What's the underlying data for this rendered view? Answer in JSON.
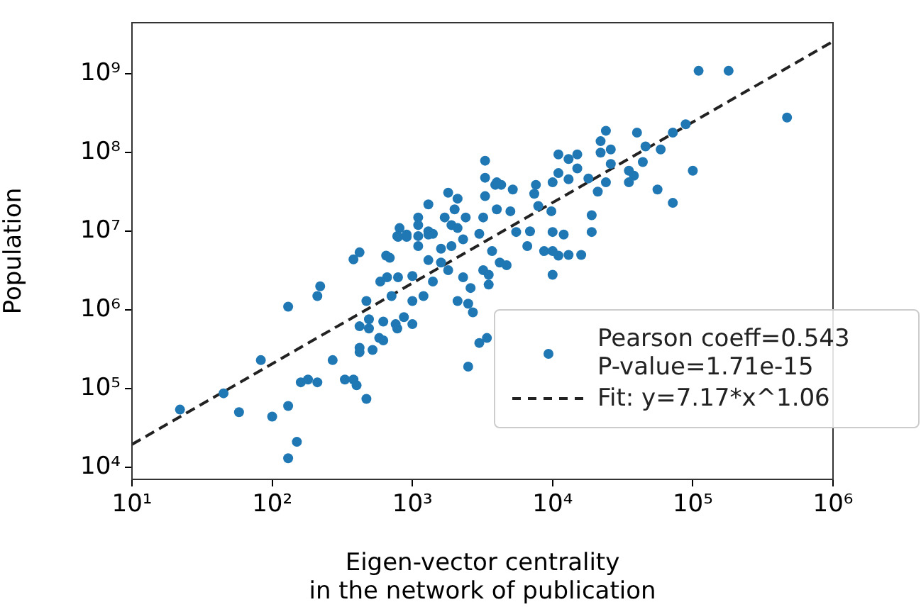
{
  "chart_data": {
    "type": "scatter",
    "xlabel": "Eigen-vector centrality\nin the network of publication",
    "ylabel": "Population",
    "log": "xy",
    "grid": false,
    "legend": "bottom right",
    "marker": "circle",
    "xlim": [
      10,
      1000000
    ],
    "ylim": [
      7000,
      4500000000
    ],
    "xticks": [
      {
        "value": 10,
        "label": "10¹"
      },
      {
        "value": 100,
        "label": "10²"
      },
      {
        "value": 1000,
        "label": "10³"
      },
      {
        "value": 10000,
        "label": "10⁴"
      },
      {
        "value": 100000,
        "label": "10⁵"
      },
      {
        "value": 1000000,
        "label": "10⁶"
      }
    ],
    "yticks": [
      {
        "value": 10000,
        "label": "10⁴"
      },
      {
        "value": 100000,
        "label": "10⁵"
      },
      {
        "value": 1000000,
        "label": "10⁶"
      },
      {
        "value": 10000000,
        "label": "10⁷"
      },
      {
        "value": 100000000,
        "label": "10⁸"
      },
      {
        "value": 1000000000,
        "label": "10⁹"
      }
    ],
    "series": [
      {
        "name": "Pearson coeff=0.543\nP-value=1.71e-15",
        "color": "#1f77b4",
        "x": [
          22,
          45,
          58,
          83,
          100,
          130,
          130,
          150,
          130,
          160,
          180,
          210,
          210,
          220,
          270,
          330,
          380,
          400,
          470,
          380,
          420,
          420,
          420,
          520,
          420,
          490,
          490,
          470,
          580,
          620,
          620,
          760,
          780,
          870,
          1000,
          590,
          660,
          790,
          650,
          690,
          710,
          1000,
          1000,
          1200,
          790,
          910,
          1100,
          1300,
          1300,
          1600,
          1600,
          1900,
          2300,
          2100,
          2500,
          2700,
          3000,
          2500,
          2300,
          1800,
          1400,
          2600,
          3200,
          3500,
          3300,
          3300,
          1800,
          2100,
          2000,
          1300,
          1100,
          1100,
          1700,
          2400,
          1900,
          2100,
          810,
          780,
          910,
          1100,
          1300,
          1400,
          3000,
          3200,
          3300,
          3900,
          110000.0,
          180000.0,
          470000.0,
          100000.0,
          72000.0,
          56000.0,
          89000.0,
          72000.0,
          59000.0,
          46000.0,
          40000.0,
          44000.0,
          35000.0,
          38000.0,
          35000.0,
          24000.0,
          22000.0,
          22000.0,
          26000.0,
          26000.0,
          24000.0,
          21000.0,
          18000.0,
          19000.0,
          19000.0,
          15000.0,
          13000.0,
          15000.0,
          11000.0,
          13000.0,
          11000.0,
          10000.0,
          7600,
          7400,
          6900,
          5500,
          10000.0,
          12000.0,
          9800,
          7900,
          4000,
          4300,
          5200,
          4000,
          5000,
          3700,
          4200,
          4700,
          3500,
          6600,
          8700,
          10000.0,
          11000.0,
          13000.0,
          16000.0,
          10000.0,
          3400
        ],
        "values": [
          54000.0,
          87000.0,
          50000.0,
          230000.0,
          44000.0,
          60000.0,
          13000.0,
          21000.0,
          1100000.0,
          120000.0,
          130000.0,
          120000.0,
          1500000.0,
          2000000.0,
          230000.0,
          130000.0,
          130000.0,
          110000.0,
          74000.0,
          4400000.0,
          5400000.0,
          330000.0,
          290000.0,
          310000.0,
          620000.0,
          580000.0,
          760000.0,
          1300000.0,
          440000.0,
          410000.0,
          710000.0,
          660000.0,
          580000.0,
          810000.0,
          660000.0,
          2300000.0,
          2600000.0,
          2600000.0,
          4900000.0,
          4600000.0,
          1500000.0,
          2700000.0,
          1300000.0,
          1500000.0,
          8500000.0,
          9100000.0,
          6500000.0,
          9100000.0,
          4300000.0,
          6000000.0,
          4000000.0,
          6500000.0,
          7900000.0,
          1300000.0,
          1200000.0,
          930000.0,
          380000.0,
          190000.0,
          2600000.0,
          3200000.0,
          2300000.0,
          1900000.0,
          3200000.0,
          2100000.0,
          79000000.0,
          48000000.0,
          31000000.0,
          26000000.0,
          19000000.0,
          22000000.0,
          15000000.0,
          12000000.0,
          15000000.0,
          15000000.0,
          12000000.0,
          11000000.0,
          11000000.0,
          8700000.0,
          8500000.0,
          8700000.0,
          10000000.0,
          9300000.0,
          9300000.0,
          15000000.0,
          28000000.0,
          39000000.0,
          1100000000.0,
          1100000000.0,
          280000000.0,
          59000000.0,
          23000000.0,
          34000000.0,
          230000000.0,
          180000000.0,
          110000000.0,
          120000000.0,
          180000000.0,
          76000000.0,
          59000000.0,
          51000000.0,
          42000000.0,
          190000000.0,
          140000000.0,
          100000000.0,
          110000000.0,
          72000000.0,
          42000000.0,
          32000000.0,
          47000000.0,
          16000000.0,
          9800000.0,
          63000000.0,
          83000000.0,
          95000000.0,
          95000000.0,
          46000000.0,
          55000000.0,
          42000000.0,
          39000000.0,
          30000000.0,
          10000000.0,
          9800000.0,
          9800000.0,
          9100000.0,
          18000000.0,
          21000000.0,
          42000000.0,
          39000000.0,
          34000000.0,
          19000000.0,
          18000000.0,
          5600000.0,
          4000000.0,
          3700000.0,
          2800000.0,
          6500000.0,
          5600000.0,
          5600000.0,
          4900000.0,
          5000000.0,
          5000000.0,
          2800000.0,
          440000.0
        ]
      },
      {
        "name": "Fit: y=7.17*x^1.06",
        "type": "line",
        "color": "#222222",
        "line_style": "dashed",
        "marker": "none",
        "x": [
          10,
          1000000
        ],
        "values": [
          19500,
          2600000000
        ]
      }
    ]
  }
}
